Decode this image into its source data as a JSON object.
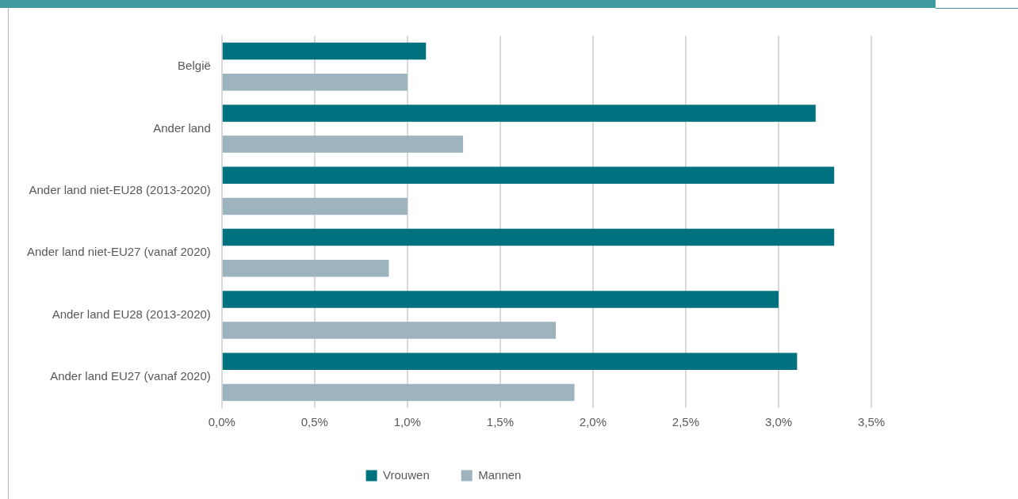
{
  "chart_data": {
    "type": "bar",
    "orientation": "horizontal",
    "categories": [
      "België",
      "Ander land",
      "Ander land niet-EU28 (2013-2020)",
      "Ander land niet-EU27 (vanaf 2020)",
      "Ander land EU28 (2013-2020)",
      "Ander land EU27 (vanaf 2020)"
    ],
    "series": [
      {
        "name": "Vrouwen",
        "color": "#00727f",
        "values": [
          1.1,
          3.2,
          3.3,
          3.3,
          3.0,
          3.1
        ]
      },
      {
        "name": "Mannen",
        "color": "#9db3be",
        "values": [
          1.0,
          1.3,
          1.0,
          0.9,
          1.8,
          1.9
        ]
      }
    ],
    "xlim": [
      0,
      3.5
    ],
    "xticks": [
      {
        "value": 0,
        "label": "0,0%"
      },
      {
        "value": 0.5,
        "label": "0,5%"
      },
      {
        "value": 1,
        "label": "1,0%"
      },
      {
        "value": 1.5,
        "label": "1,5%"
      },
      {
        "value": 2,
        "label": "2,0%"
      },
      {
        "value": 2.5,
        "label": "2,5%"
      },
      {
        "value": 3,
        "label": "3,0%"
      },
      {
        "value": 3.5,
        "label": "3,5%"
      }
    ],
    "grid": "x",
    "legend": "bottom"
  }
}
